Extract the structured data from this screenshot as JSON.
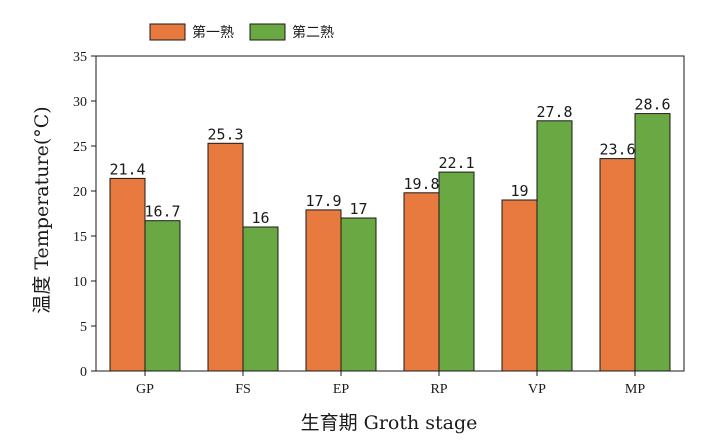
{
  "chart_data": {
    "type": "bar",
    "categories": [
      "GP",
      "FS",
      "EP",
      "RP",
      "VP",
      "MP"
    ],
    "series": [
      {
        "name": "第一熟",
        "color": "#E8793F",
        "values": [
          21.4,
          25.3,
          17.9,
          19.8,
          19,
          23.6
        ],
        "labels": [
          "21.4",
          "25.3",
          "17.9",
          "19.8",
          "19",
          "23.6"
        ]
      },
      {
        "name": "第二熟",
        "color": "#6AA844",
        "values": [
          16.7,
          16,
          17,
          22.1,
          27.8,
          28.6
        ],
        "labels": [
          "16.7",
          "16",
          "17",
          "22.1",
          "27.8",
          "28.6"
        ]
      }
    ],
    "title": "",
    "xlabel": "生育期  Groth stage",
    "ylabel": "温度  Temperature(°C)",
    "ylim": [
      0,
      35
    ],
    "yticks": [
      0,
      5,
      10,
      15,
      20,
      25,
      30,
      35
    ],
    "grid": false,
    "legend_position": "top-left"
  }
}
